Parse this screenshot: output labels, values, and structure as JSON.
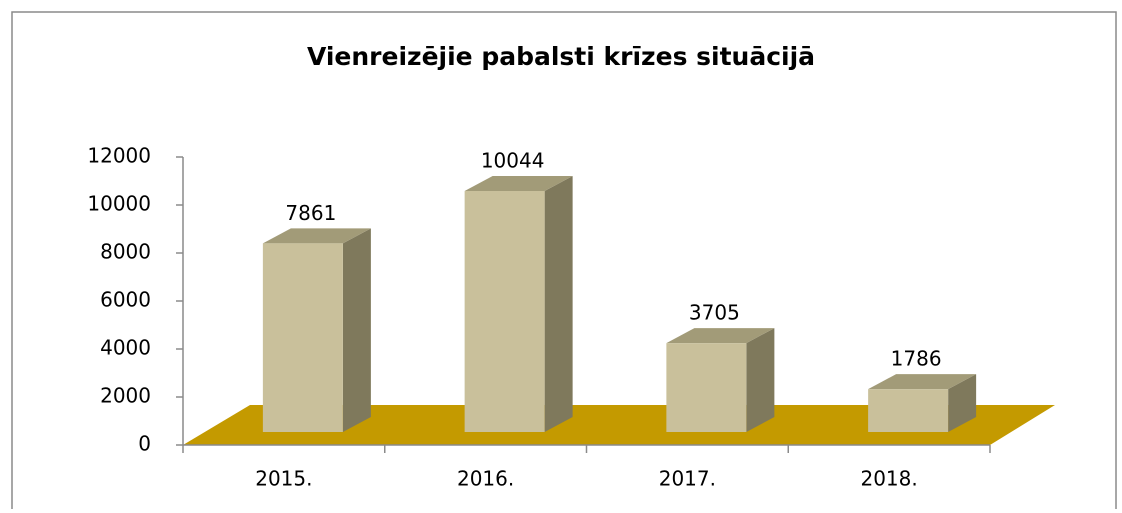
{
  "chart_data": {
    "type": "bar3d",
    "title": "Vienreizējie pabalsti krīzes  situācijā",
    "categories": [
      "2015.",
      "2016.",
      "2017.",
      "2018."
    ],
    "values": [
      7861,
      10044,
      3705,
      1786
    ],
    "color": "#c9c09b",
    "floor_color": "#c49a00",
    "ylim": [
      0,
      12000
    ],
    "yticks": [
      0,
      2000,
      4000,
      6000,
      8000,
      10000,
      12000
    ]
  }
}
